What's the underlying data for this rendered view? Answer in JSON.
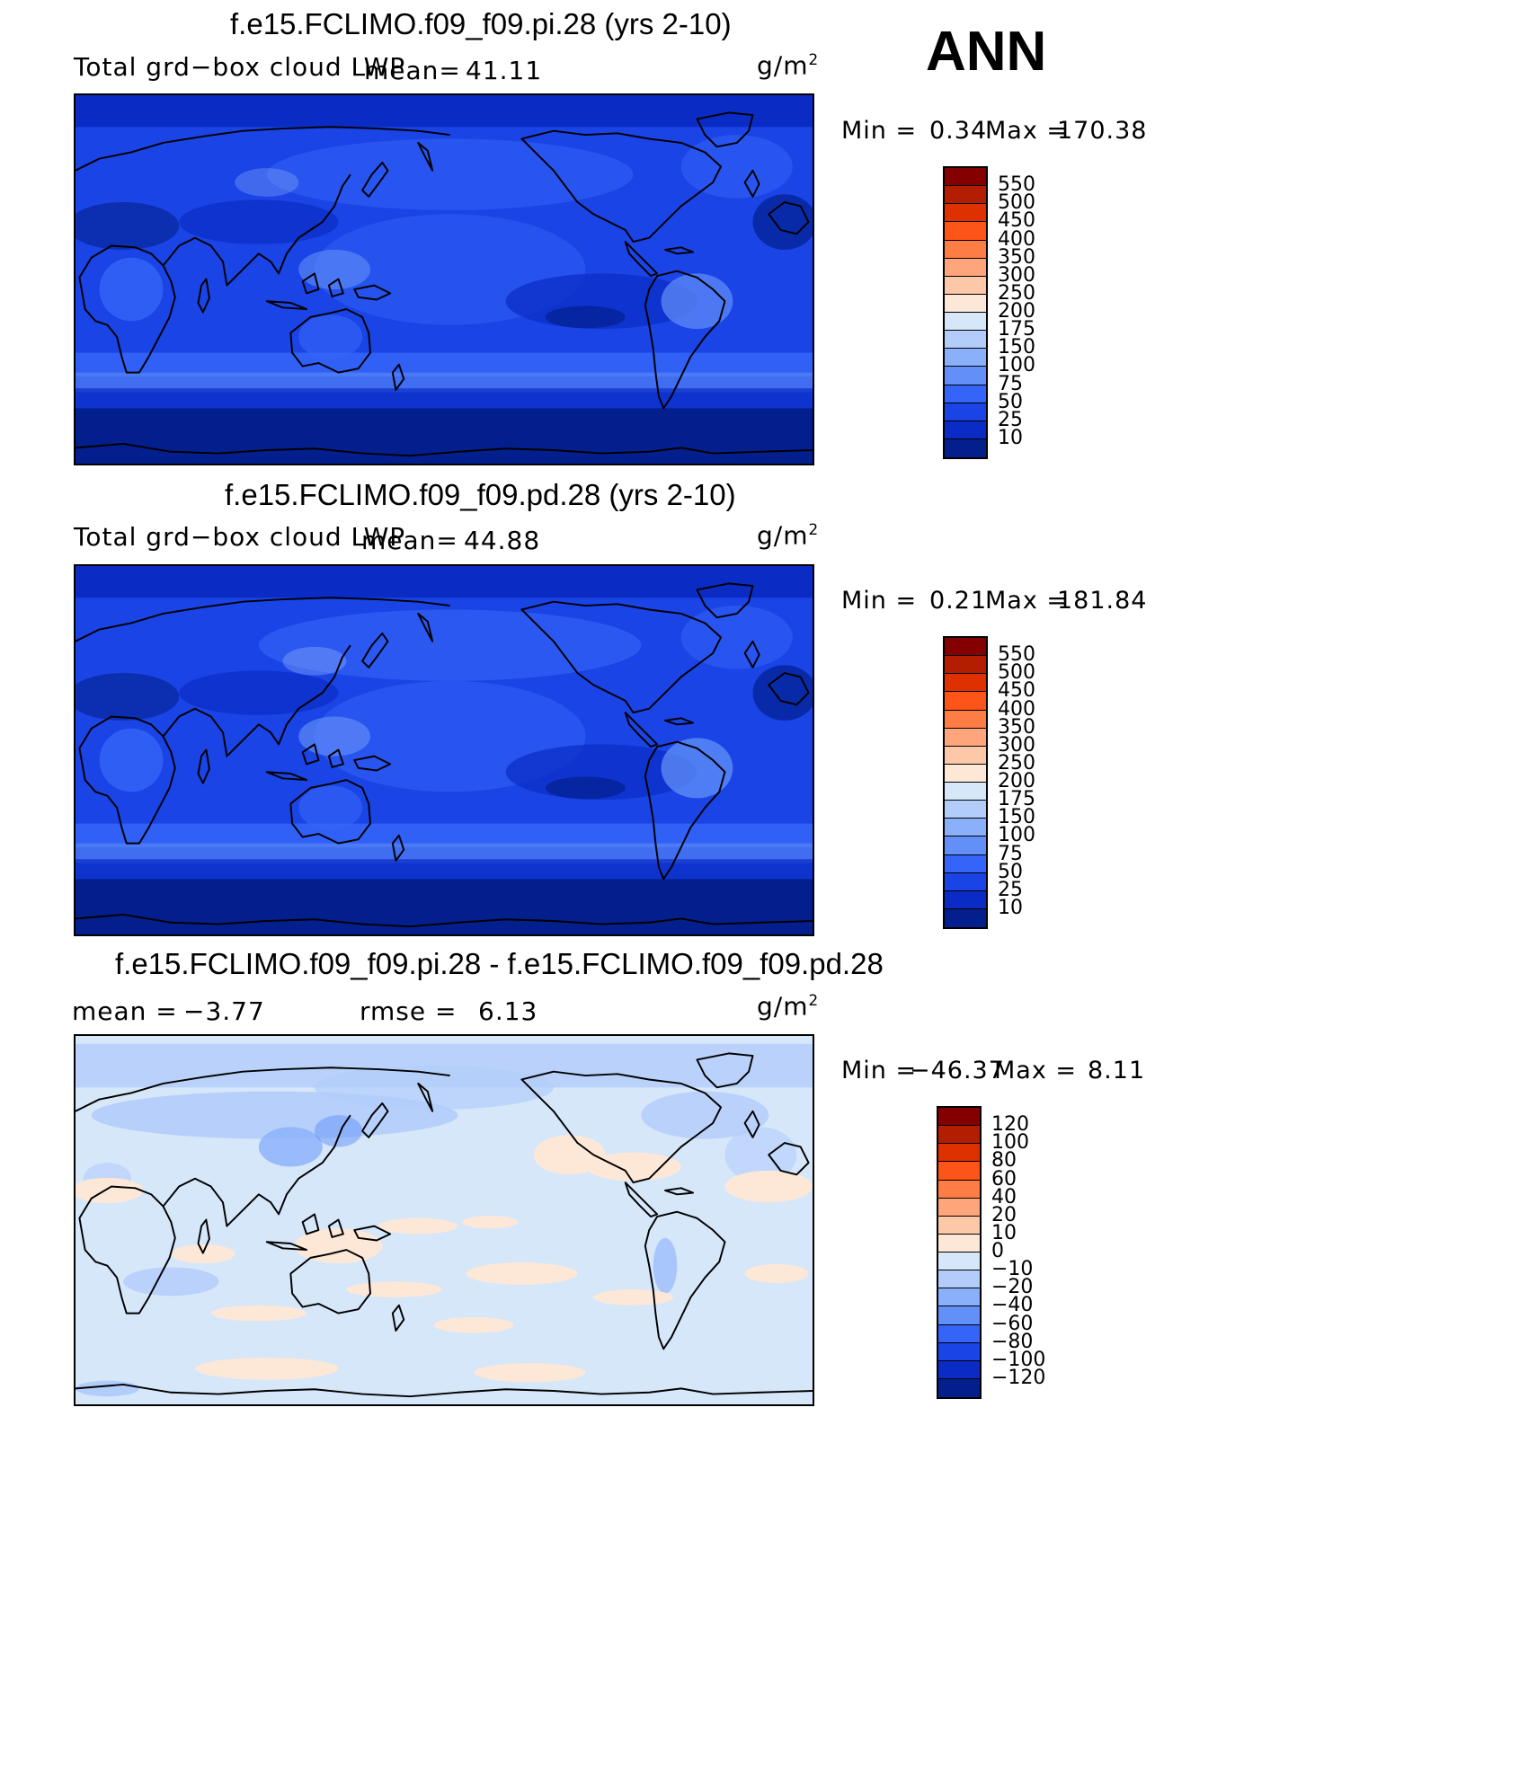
{
  "season": "ANN",
  "panels": [
    {
      "title": "f.e15.FCLIMO.f09_f09.pi.28 (yrs 2-10)",
      "variable": "Total grd−box cloud LWP",
      "mean_label": "mean=",
      "mean_value": "41.11",
      "units": "g/m",
      "units_exp": "2",
      "min_label": "Min =",
      "min_value": "0.34",
      "max_label": "Max =",
      "max_value": "170.38",
      "palette": "abs"
    },
    {
      "title": "f.e15.FCLIMO.f09_f09.pd.28 (yrs 2-10)",
      "variable": "Total grd−box cloud LWP",
      "mean_label": "mean=",
      "mean_value": "44.88",
      "units": "g/m",
      "units_exp": "2",
      "min_label": "Min =",
      "min_value": "0.21",
      "max_label": "Max =",
      "max_value": "181.84",
      "palette": "abs"
    },
    {
      "title": "f.e15.FCLIMO.f09_f09.pi.28 - f.e15.FCLIMO.f09_f09.pd.28",
      "mean_label": "mean =",
      "mean_value": "−3.77",
      "rmse_label": "rmse =",
      "rmse_value": "6.13",
      "units": "g/m",
      "units_exp": "2",
      "min_label": "Min =",
      "min_value": "−46.37",
      "max_label": "Max =",
      "max_value": "8.11",
      "palette": "diff"
    }
  ],
  "colorbars": {
    "abs": {
      "levels": [
        "550",
        "500",
        "450",
        "400",
        "350",
        "300",
        "250",
        "200",
        "175",
        "150",
        "100",
        "75",
        "50",
        "25",
        "10"
      ],
      "colors": [
        "#840000",
        "#b31e00",
        "#df3000",
        "#fd5517",
        "#fe7d45",
        "#fea57b",
        "#fcc8a8",
        "#fde8d8",
        "#d6e7fa",
        "#b3cdfb",
        "#8bb0fb",
        "#6290f8",
        "#3565f8",
        "#1a44e6",
        "#0a2cc4",
        "#031f8d"
      ]
    },
    "diff": {
      "levels": [
        "120",
        "100",
        "80",
        "60",
        "40",
        "20",
        "10",
        "0",
        "−10",
        "−20",
        "−40",
        "−60",
        "−80",
        "−100",
        "−120"
      ],
      "colors": [
        "#840000",
        "#b31e00",
        "#df3000",
        "#fd5517",
        "#fe7d45",
        "#fea57b",
        "#fcc8a8",
        "#fde8d8",
        "#d6e7fa",
        "#b3cdfb",
        "#8bb0fb",
        "#6290f8",
        "#3565f8",
        "#1a44e6",
        "#0a2cc4",
        "#031f8d"
      ]
    }
  }
}
